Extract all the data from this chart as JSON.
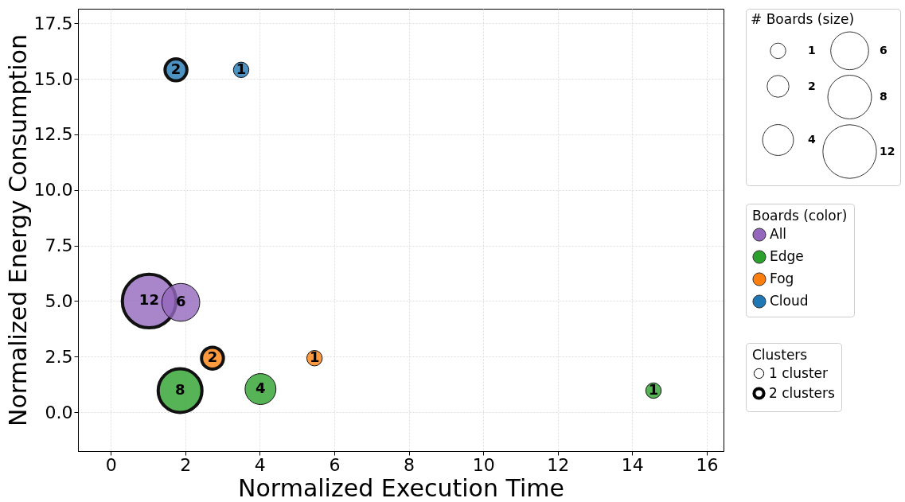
{
  "chart_data": {
    "type": "bubble",
    "xlabel": "Normalized Execution Time",
    "ylabel": "Normalized Energy Consumption",
    "legend_title": "Boards (color)",
    "size_legend": [
      1,
      2,
      4,
      6,
      8,
      12
    ],
    "annotations": [
      "# Boards (size)",
      "Clusters",
      "1 cluster",
      "2 clusters"
    ],
    "xlim": [
      -0.88,
      16.45
    ],
    "ylim": [
      -1.75,
      18.15
    ],
    "xticks": [
      0,
      2,
      4,
      6,
      8,
      10,
      12,
      14,
      16
    ],
    "yticks": [
      {
        "value": 0,
        "label": "0.0"
      },
      2.5,
      {
        "value": 5,
        "label": "5.0"
      },
      7.5,
      {
        "value": 10,
        "label": "10.0"
      },
      12.5,
      {
        "value": 15,
        "label": "15.0"
      },
      17.5
    ],
    "grid": true,
    "legend": "right",
    "marker": "circle",
    "series": [
      {
        "name": "All",
        "color": "#9467bd",
        "x": [
          1.88
        ],
        "values": [
          4.94
        ],
        "sizes": [
          6
        ],
        "value_labels": [
          "6"
        ]
      },
      {
        "name": "Edge",
        "color": "#2ca02c",
        "x": [
          4.02,
          14.57
        ],
        "values": [
          1.04,
          0.97
        ],
        "sizes": [
          4,
          1
        ],
        "value_labels": [
          "4",
          "1"
        ]
      },
      {
        "name": "Fog",
        "color": "#ff7f0e",
        "x": [
          5.47
        ],
        "values": [
          2.43
        ],
        "sizes": [
          1
        ],
        "value_labels": [
          "1"
        ]
      },
      {
        "name": "Cloud",
        "color": "#1f77b4",
        "x": [
          3.5
        ],
        "values": [
          15.4
        ],
        "sizes": [
          1
        ],
        "value_labels": [
          "1"
        ]
      },
      {
        "color": "#9467bd",
        "x": [
          1.03
        ],
        "values": [
          5.0
        ],
        "sizes": [
          12
        ],
        "value_labels": [
          "12"
        ]
      },
      {
        "color": "#2ca02c",
        "x": [
          1.86
        ],
        "values": [
          0.97
        ],
        "sizes": [
          8
        ],
        "value_labels": [
          "8"
        ]
      },
      {
        "color": "#ff7f0e",
        "x": [
          2.73
        ],
        "values": [
          2.43
        ],
        "sizes": [
          2
        ],
        "value_labels": [
          "2"
        ]
      },
      {
        "color": "#1f77b4",
        "x": [
          1.75
        ],
        "values": [
          15.4
        ],
        "sizes": [
          2
        ],
        "value_labels": [
          "2"
        ]
      }
    ]
  }
}
